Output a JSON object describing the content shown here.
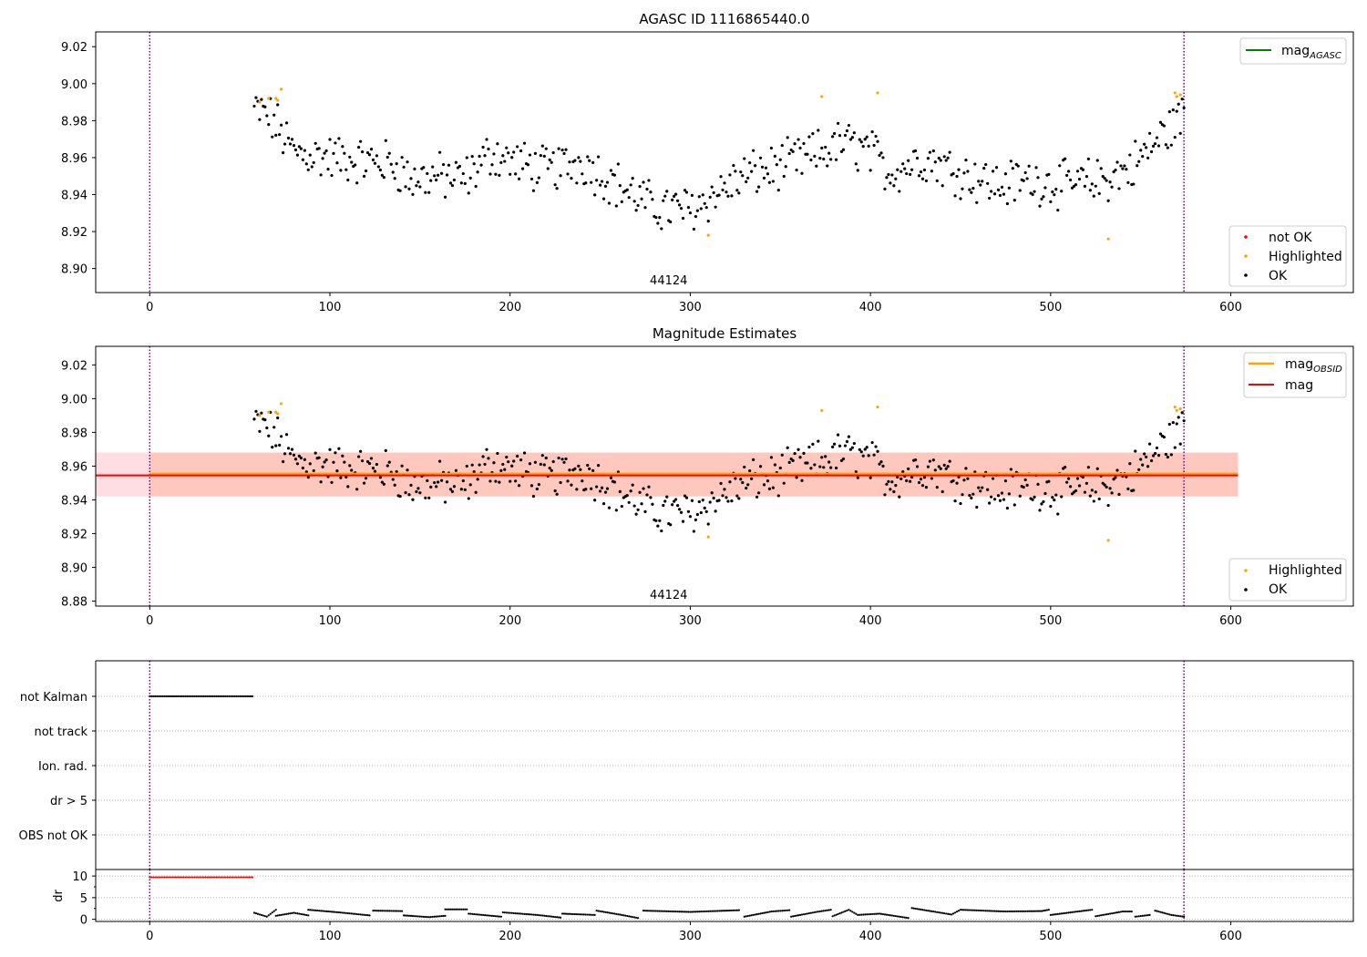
{
  "figure": {
    "colors": {
      "ok": "#000000",
      "highlighted": "#ffa500",
      "not_ok": "#ff0000",
      "agasc_line": "#008000",
      "obsid_line": "#ffa500",
      "mag_line": "#ff0000",
      "mag_band": "#ffb6c1",
      "obsid_band": "#ffa07a",
      "obs_boundary": "#800080",
      "grid": "#b0b0b0"
    }
  },
  "chart_data": [
    {
      "type": "scatter",
      "title": "AGASC ID 1116865440.0",
      "xlim": [
        -30,
        668
      ],
      "ylim": [
        8.887,
        9.028
      ],
      "xticks": [
        0,
        100,
        200,
        300,
        400,
        500,
        600
      ],
      "yticks": [
        8.9,
        8.92,
        8.94,
        8.96,
        8.98,
        9.0,
        9.02
      ],
      "ytick_labels": [
        "8.90",
        "8.92",
        "8.94",
        "8.96",
        "8.98",
        "9.00",
        "9.02"
      ],
      "obs_boundaries": [
        0,
        574
      ],
      "obsid_label": {
        "text": "44124",
        "x": 287
      },
      "agasc_mag": {
        "label": "mag",
        "label_sub": "AGASC",
        "value": null
      },
      "legend_upper": [
        {
          "label": "mag",
          "sub": "AGASC",
          "color": "#008000"
        }
      ],
      "legend_lower": [
        {
          "label": "not OK",
          "color": "#ff0000"
        },
        {
          "label": "Highlighted",
          "color": "#ffa500"
        },
        {
          "label": "OK",
          "color": "#000000"
        }
      ],
      "ok_x_range": [
        58,
        574
      ],
      "highlighted_points": [
        [
          61,
          8.99
        ],
        [
          66,
          8.992
        ],
        [
          70,
          8.992
        ],
        [
          71,
          8.991
        ],
        [
          73,
          8.997
        ],
        [
          310,
          8.918
        ],
        [
          373,
          8.993
        ],
        [
          404,
          8.995
        ],
        [
          532,
          8.916
        ],
        [
          569,
          8.995
        ],
        [
          570,
          8.993
        ],
        [
          572,
          8.994
        ]
      ],
      "ok_trend": [
        [
          58,
          8.986
        ],
        [
          65,
          8.983
        ],
        [
          70,
          8.978
        ],
        [
          75,
          8.97
        ],
        [
          80,
          8.963
        ],
        [
          100,
          8.96
        ],
        [
          120,
          8.958
        ],
        [
          135,
          8.957
        ],
        [
          145,
          8.948
        ],
        [
          160,
          8.95
        ],
        [
          175,
          8.948
        ],
        [
          190,
          8.963
        ],
        [
          200,
          8.958
        ],
        [
          220,
          8.953
        ],
        [
          240,
          8.958
        ],
        [
          260,
          8.945
        ],
        [
          280,
          8.933
        ],
        [
          300,
          8.932
        ],
        [
          310,
          8.938
        ],
        [
          330,
          8.95
        ],
        [
          350,
          8.955
        ],
        [
          370,
          8.962
        ],
        [
          385,
          8.968
        ],
        [
          400,
          8.963
        ],
        [
          410,
          8.952
        ],
        [
          430,
          8.96
        ],
        [
          450,
          8.952
        ],
        [
          470,
          8.945
        ],
        [
          490,
          8.948
        ],
        [
          510,
          8.945
        ],
        [
          530,
          8.948
        ],
        [
          545,
          8.955
        ],
        [
          555,
          8.965
        ],
        [
          565,
          8.975
        ],
        [
          574,
          8.983
        ]
      ]
    },
    {
      "type": "scatter",
      "title": "Magnitude Estimates",
      "xlim": [
        -30,
        668
      ],
      "ylim": [
        8.877,
        9.031
      ],
      "xticks": [
        0,
        100,
        200,
        300,
        400,
        500,
        600
      ],
      "yticks": [
        8.88,
        8.9,
        8.92,
        8.94,
        8.96,
        8.98,
        9.0,
        9.02
      ],
      "ytick_labels": [
        "8.88",
        "8.90",
        "8.92",
        "8.94",
        "8.96",
        "8.98",
        "9.00",
        "9.02"
      ],
      "obs_boundaries": [
        0,
        574
      ],
      "obsid_label": {
        "text": "44124",
        "x": 287
      },
      "mag_obsid": {
        "value": 8.955,
        "band": [
          8.942,
          8.968
        ],
        "x_range": [
          0,
          604
        ]
      },
      "mag": {
        "value": 8.955,
        "band": [
          8.942,
          8.968
        ],
        "x_range": [
          -30,
          604
        ]
      },
      "legend_upper": [
        {
          "label": "mag",
          "sub": "OBSID",
          "color": "#ffa500"
        },
        {
          "label": "mag",
          "sub": "",
          "color": "#ff0000"
        }
      ],
      "legend_lower": [
        {
          "label": "Highlighted",
          "color": "#ffa500"
        },
        {
          "label": "OK",
          "color": "#000000"
        }
      ]
    },
    {
      "type": "scatter",
      "title": "",
      "xlim": [
        -30,
        668
      ],
      "category_labels": [
        "not Kalman",
        "not track",
        "Ion. rad.",
        "dr > 5",
        "OBS not OK"
      ],
      "flags": [
        {
          "category": "not Kalman",
          "x_range": [
            0,
            57
          ],
          "color": "#000000"
        }
      ],
      "obs_boundaries": [
        0,
        574
      ]
    },
    {
      "type": "scatter",
      "title": "",
      "ylabel": "dr",
      "xlim": [
        -30,
        668
      ],
      "ylim": [
        -0.5,
        11.5
      ],
      "xticks": [
        0,
        100,
        200,
        300,
        400,
        500,
        600
      ],
      "xtick_labels": [
        "0",
        "100",
        "200",
        "300",
        "400",
        "500",
        "600"
      ],
      "yticks": [
        0,
        5,
        10
      ],
      "ytick_labels": [
        "0",
        "5",
        "10"
      ],
      "obs_boundaries": [
        0,
        574
      ],
      "not_ok_segment": {
        "x_range": [
          0,
          57
        ],
        "value": 9.7,
        "color": "#ff0000"
      },
      "dr_segments": [
        [
          [
            58,
            1.5
          ],
          [
            65,
            0.6
          ],
          [
            70,
            2.2
          ]
        ],
        [
          [
            70,
            0.8
          ],
          [
            80,
            1.5
          ],
          [
            88,
            0.9
          ]
        ],
        [
          [
            88,
            2.2
          ],
          [
            105,
            1.6
          ],
          [
            122,
            0.9
          ]
        ],
        [
          [
            124,
            2.0
          ],
          [
            140,
            1.9
          ]
        ],
        [
          [
            141,
            0.9
          ],
          [
            155,
            0.5
          ],
          [
            164,
            0.8
          ]
        ],
        [
          [
            164,
            2.3
          ],
          [
            176,
            2.3
          ]
        ],
        [
          [
            177,
            1.3
          ],
          [
            195,
            0.6
          ]
        ],
        [
          [
            196,
            1.6
          ],
          [
            215,
            1.0
          ],
          [
            228,
            0.4
          ]
        ],
        [
          [
            229,
            1.3
          ],
          [
            247,
            1.0
          ]
        ],
        [
          [
            248,
            2.0
          ],
          [
            262,
            1.0
          ],
          [
            271,
            0.3
          ]
        ],
        [
          [
            274,
            2.0
          ],
          [
            300,
            1.7
          ],
          [
            327,
            2.1
          ]
        ],
        [
          [
            330,
            0.6
          ],
          [
            345,
            1.8
          ],
          [
            355,
            2.1
          ]
        ],
        [
          [
            356,
            0.6
          ],
          [
            370,
            1.7
          ],
          [
            378,
            2.2
          ]
        ],
        [
          [
            379,
            0.7
          ],
          [
            388,
            2.2
          ],
          [
            393,
            1.0
          ],
          [
            405,
            1.3
          ],
          [
            421,
            0.3
          ]
        ],
        [
          [
            423,
            2.6
          ],
          [
            445,
            1.1
          ],
          [
            450,
            2.2
          ],
          [
            475,
            1.8
          ],
          [
            495,
            1.9
          ],
          [
            499,
            2.2
          ]
        ],
        [
          [
            500,
            1.0
          ],
          [
            515,
            1.8
          ],
          [
            523,
            2.2
          ]
        ],
        [
          [
            525,
            0.7
          ],
          [
            540,
            1.8
          ],
          [
            545,
            1.8
          ]
        ],
        [
          [
            547,
            0.6
          ],
          [
            555,
            1.0
          ]
        ],
        [
          [
            558,
            2.0
          ],
          [
            567,
            1.0
          ],
          [
            574,
            0.6
          ]
        ]
      ]
    }
  ]
}
